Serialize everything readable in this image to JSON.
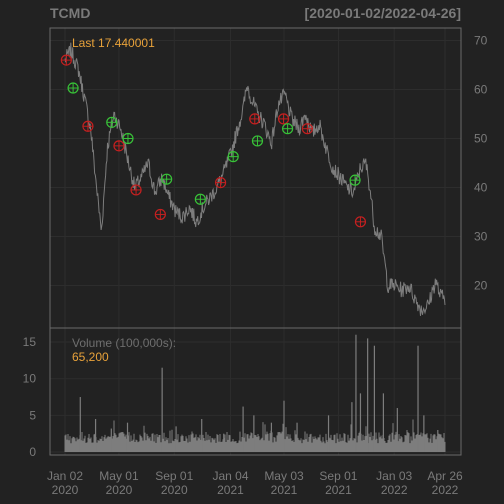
{
  "header": {
    "symbol": "TCMD",
    "date_range": "[2020-01-02/2022-04-26]"
  },
  "price_panel": {
    "last_label": "Last 17.440001"
  },
  "volume_panel": {
    "label": "Volume (100,000s):",
    "last_value": "65,200"
  },
  "colors": {
    "background": "#222222",
    "frame": "#6a6a6a",
    "grid": "#2d2d2d",
    "series": "#7d7d7d",
    "sell_marker": "#c42020",
    "buy_marker": "#38c238",
    "label_accent": "#e8a23a"
  },
  "chart_data": [
    {
      "type": "line",
      "panel": "price",
      "ylim": [
        12,
        72
      ],
      "yticks": [
        20,
        30,
        40,
        50,
        60,
        70
      ],
      "x_ticks": [
        {
          "date": "2020-01-02",
          "label1": "Jan 02",
          "label2": "2020"
        },
        {
          "date": "2020-05-01",
          "label1": "May 01",
          "label2": "2020"
        },
        {
          "date": "2020-09-01",
          "label1": "Sep 01",
          "label2": "2020"
        },
        {
          "date": "2021-01-04",
          "label1": "Jan 04",
          "label2": "2021"
        },
        {
          "date": "2021-05-03",
          "label1": "May 03",
          "label2": "2021"
        },
        {
          "date": "2021-09-01",
          "label1": "Sep 01",
          "label2": "2021"
        },
        {
          "date": "2022-01-03",
          "label1": "Jan 03",
          "label2": "2022"
        },
        {
          "date": "2022-04-26",
          "label1": "Apr 26",
          "label2": "2022"
        }
      ],
      "series": [
        {
          "x": [
            "2020-01-02",
            "2020-01-15",
            "2020-02-01",
            "2020-02-15",
            "2020-02-28",
            "2020-03-10",
            "2020-03-23",
            "2020-04-05",
            "2020-04-20",
            "2020-05-05",
            "2020-05-20",
            "2020-06-05",
            "2020-06-20",
            "2020-07-05",
            "2020-07-20",
            "2020-08-05",
            "2020-08-20",
            "2020-09-05",
            "2020-09-20",
            "2020-10-05",
            "2020-10-20",
            "2020-11-05",
            "2020-11-20",
            "2020-12-05",
            "2020-12-20",
            "2021-01-05",
            "2021-01-20",
            "2021-02-01",
            "2021-02-10",
            "2021-02-20",
            "2021-03-05",
            "2021-03-20",
            "2021-04-05",
            "2021-04-20",
            "2021-05-05",
            "2021-05-20",
            "2021-06-05",
            "2021-06-20",
            "2021-07-05",
            "2021-07-20",
            "2021-08-05",
            "2021-08-20",
            "2021-09-05",
            "2021-09-20",
            "2021-10-05",
            "2021-10-20",
            "2021-11-01",
            "2021-11-10",
            "2021-11-20",
            "2021-12-05",
            "2021-12-20",
            "2022-01-05",
            "2022-01-20",
            "2022-02-05",
            "2022-02-20",
            "2022-03-05",
            "2022-03-20",
            "2022-04-05",
            "2022-04-15",
            "2022-04-26"
          ],
          "values": [
            66,
            68,
            64,
            58,
            52,
            42,
            31,
            48,
            55,
            52,
            46,
            40,
            42,
            45,
            39,
            42,
            38,
            35,
            34,
            36,
            33,
            36,
            38,
            40,
            43,
            47,
            52,
            56,
            61,
            58,
            55,
            53,
            49,
            57,
            59,
            54,
            52,
            55,
            51,
            53,
            48,
            44,
            42,
            40,
            39,
            44,
            45,
            40,
            32,
            30,
            20,
            20,
            19,
            20,
            17,
            15,
            16,
            21,
            18,
            17.44
          ]
        }
      ],
      "markers": {
        "sell": [
          {
            "x": "2020-01-05",
            "y": 66
          },
          {
            "x": "2020-02-22",
            "y": 52.5
          },
          {
            "x": "2020-05-01",
            "y": 48.5
          },
          {
            "x": "2020-06-08",
            "y": 39.5
          },
          {
            "x": "2020-08-01",
            "y": 34.5
          },
          {
            "x": "2020-12-13",
            "y": 41
          },
          {
            "x": "2021-02-27",
            "y": 54
          },
          {
            "x": "2021-05-02",
            "y": 54
          },
          {
            "x": "2021-06-24",
            "y": 52
          },
          {
            "x": "2021-10-20",
            "y": 33
          }
        ],
        "buy": [
          {
            "x": "2020-01-20",
            "y": 60.3
          },
          {
            "x": "2020-04-15",
            "y": 53.3
          },
          {
            "x": "2020-05-21",
            "y": 50
          },
          {
            "x": "2020-08-15",
            "y": 41.7
          },
          {
            "x": "2020-10-29",
            "y": 37.6
          },
          {
            "x": "2021-01-10",
            "y": 46.3
          },
          {
            "x": "2021-03-05",
            "y": 49.5
          },
          {
            "x": "2021-05-11",
            "y": 52
          },
          {
            "x": "2021-10-08",
            "y": 41.5
          }
        ]
      }
    },
    {
      "type": "bar",
      "panel": "volume",
      "ylim": [
        0,
        17.5
      ],
      "yticks": [
        0,
        5,
        10,
        15
      ],
      "baseline": 1.2,
      "spikes": [
        {
          "x": "2020-02-05",
          "value": 7.5
        },
        {
          "x": "2020-03-10",
          "value": 4.5
        },
        {
          "x": "2020-04-14",
          "value": 3.2
        },
        {
          "x": "2020-05-20",
          "value": 4.0
        },
        {
          "x": "2020-08-05",
          "value": 11.5
        },
        {
          "x": "2020-09-05",
          "value": 3.5
        },
        {
          "x": "2020-11-01",
          "value": 4.5
        },
        {
          "x": "2020-12-20",
          "value": 2.5
        },
        {
          "x": "2021-02-01",
          "value": 6.2
        },
        {
          "x": "2021-02-25",
          "value": 5.0
        },
        {
          "x": "2021-04-05",
          "value": 4.0
        },
        {
          "x": "2021-05-03",
          "value": 7.0
        },
        {
          "x": "2021-06-01",
          "value": 4.0
        },
        {
          "x": "2021-08-10",
          "value": 5.0
        },
        {
          "x": "2021-10-01",
          "value": 6.8
        },
        {
          "x": "2021-10-10",
          "value": 16.0
        },
        {
          "x": "2021-10-20",
          "value": 8.0
        },
        {
          "x": "2021-11-05",
          "value": 15.5
        },
        {
          "x": "2021-11-20",
          "value": 14.5
        },
        {
          "x": "2021-12-10",
          "value": 8.0
        },
        {
          "x": "2022-01-10",
          "value": 6.0
        },
        {
          "x": "2022-02-25",
          "value": 14.5
        },
        {
          "x": "2022-03-10",
          "value": 5.0
        },
        {
          "x": "2022-04-10",
          "value": 3.0
        }
      ]
    }
  ]
}
